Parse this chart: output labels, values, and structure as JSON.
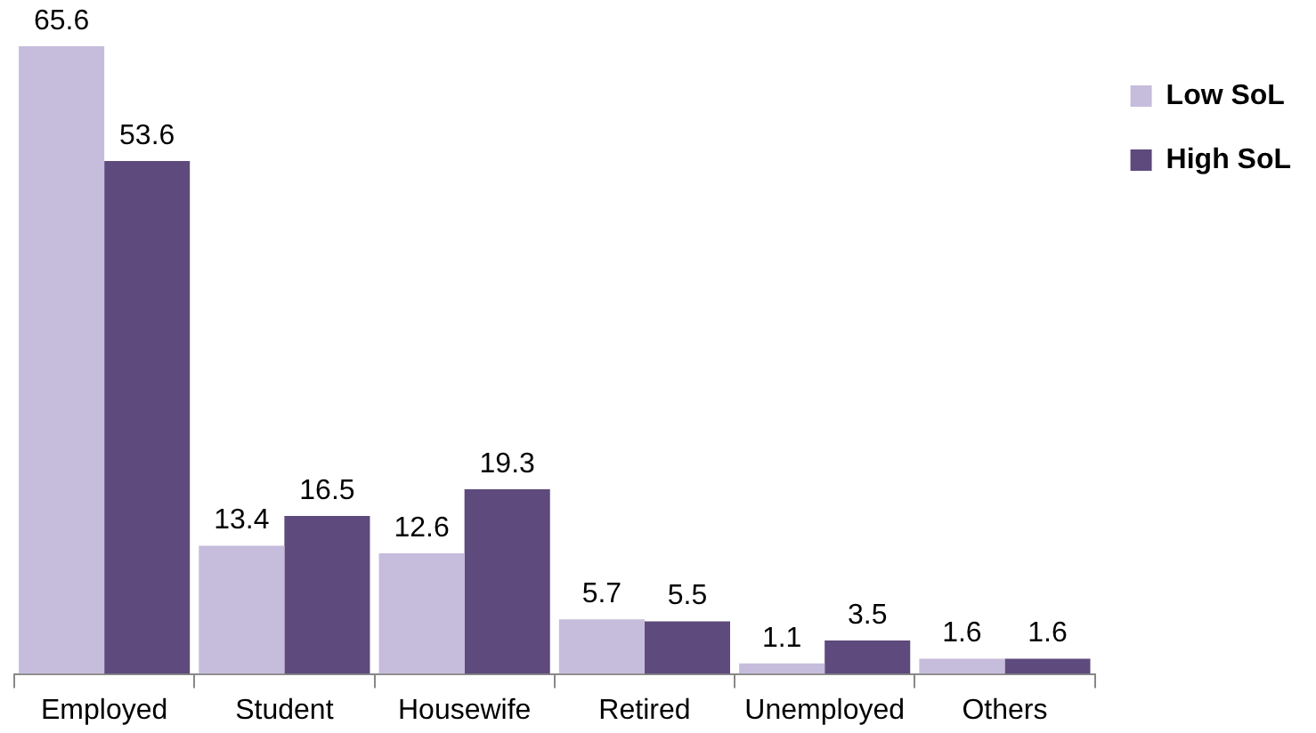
{
  "chart_data": {
    "type": "bar",
    "categories": [
      "Employed",
      "Student",
      "Housewife",
      "Retired",
      "Unemployed",
      "Others"
    ],
    "series": [
      {
        "name": "Low SoL",
        "color": "#c6bcdb",
        "values": [
          65.6,
          13.4,
          12.6,
          5.7,
          1.1,
          1.6
        ]
      },
      {
        "name": "High SoL",
        "color": "#5e4a7c",
        "values": [
          53.6,
          16.5,
          19.3,
          5.5,
          3.5,
          1.6
        ]
      }
    ],
    "data_labels": true,
    "legend": "top right",
    "grid": false
  }
}
